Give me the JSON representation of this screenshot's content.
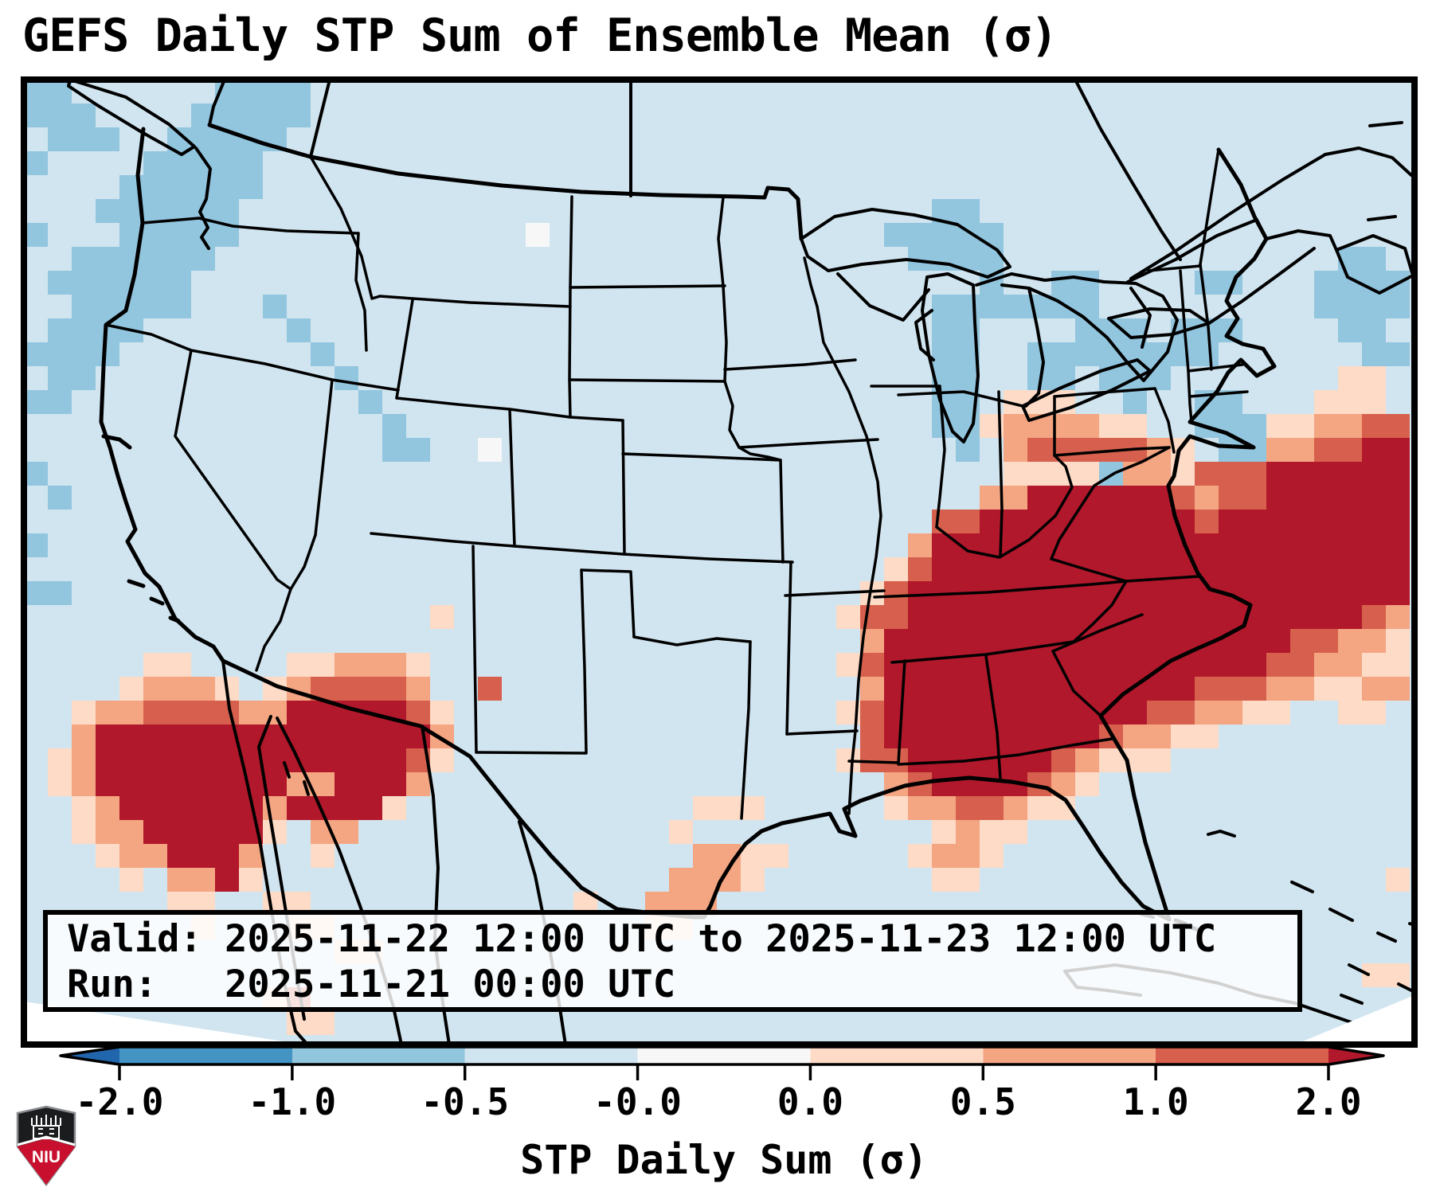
{
  "title": "GEFS Daily STP Sum of Ensemble Mean (σ)",
  "info_box": {
    "line1": "Valid: 2025-11-22 12:00 UTC to 2025-11-23 12:00 UTC",
    "line2": "Run:   2025-11-21 00:00 UTC"
  },
  "colorbar": {
    "label": "STP Daily Sum (σ)",
    "ticks": [
      "-2.0",
      "-1.0",
      "-0.5",
      "-0.0",
      "0.0",
      "0.5",
      "1.0",
      "2.0"
    ],
    "segment_colors": [
      "#4393c3",
      "#92c5de",
      "#d1e5f0",
      "#f7f7f7",
      "#fddbc7",
      "#f4a582",
      "#d6604d"
    ],
    "extend_left": "#2166ac",
    "extend_right": "#b2182b"
  },
  "map": {
    "background": "#d1e5f0",
    "cell_size": 30,
    "palette": {
      "d": "#b2182b",
      "r": "#d6604d",
      "s": "#f4a582",
      "p": "#fddbc7",
      "w": "#f7f7f7",
      "b": "#92c5de"
    },
    "runs": [
      [
        0,
        0,
        1,
        "b"
      ],
      [
        0,
        8,
        11,
        "b"
      ],
      [
        1,
        0,
        2,
        "b"
      ],
      [
        1,
        7,
        11,
        "b"
      ],
      [
        2,
        1,
        3,
        "b"
      ],
      [
        2,
        6,
        10,
        "b"
      ],
      [
        3,
        0,
        0,
        "b"
      ],
      [
        3,
        5,
        9,
        "b"
      ],
      [
        4,
        4,
        9,
        "b"
      ],
      [
        5,
        3,
        8,
        "b"
      ],
      [
        6,
        0,
        0,
        "b"
      ],
      [
        6,
        4,
        8,
        "b"
      ],
      [
        7,
        2,
        7,
        "b"
      ],
      [
        8,
        1,
        6,
        "b"
      ],
      [
        9,
        2,
        6,
        "b"
      ],
      [
        9,
        10,
        10,
        "b"
      ],
      [
        10,
        1,
        4,
        "b"
      ],
      [
        10,
        11,
        11,
        "b"
      ],
      [
        11,
        0,
        3,
        "b"
      ],
      [
        11,
        12,
        12,
        "b"
      ],
      [
        12,
        1,
        2,
        "b"
      ],
      [
        12,
        13,
        13,
        "b"
      ],
      [
        13,
        0,
        1,
        "b"
      ],
      [
        13,
        14,
        14,
        "b"
      ],
      [
        14,
        15,
        15,
        "b"
      ],
      [
        15,
        15,
        16,
        "b"
      ],
      [
        16,
        0,
        0,
        "b"
      ],
      [
        17,
        1,
        1,
        "b"
      ],
      [
        19,
        0,
        0,
        "b"
      ],
      [
        21,
        0,
        1,
        "b"
      ],
      [
        5,
        38,
        39,
        "b"
      ],
      [
        6,
        36,
        40,
        "b"
      ],
      [
        7,
        37,
        40,
        "b"
      ],
      [
        8,
        40,
        40,
        "b"
      ],
      [
        8,
        43,
        44,
        "b"
      ],
      [
        9,
        38,
        40,
        "b"
      ],
      [
        9,
        41,
        44,
        "b"
      ],
      [
        10,
        38,
        39,
        "b"
      ],
      [
        10,
        44,
        46,
        "b"
      ],
      [
        11,
        38,
        39,
        "b"
      ],
      [
        11,
        42,
        44,
        "b"
      ],
      [
        11,
        45,
        47,
        "b"
      ],
      [
        12,
        38,
        39,
        "b"
      ],
      [
        12,
        42,
        43,
        "b"
      ],
      [
        12,
        46,
        47,
        "b"
      ],
      [
        13,
        38,
        39,
        "b"
      ],
      [
        13,
        46,
        46,
        "b"
      ],
      [
        14,
        38,
        39,
        "b"
      ],
      [
        15,
        39,
        39,
        "b"
      ],
      [
        8,
        49,
        50,
        "b"
      ],
      [
        10,
        48,
        50,
        "b"
      ],
      [
        11,
        48,
        49,
        "b"
      ],
      [
        12,
        45,
        46,
        "b"
      ],
      [
        13,
        49,
        50,
        "b"
      ],
      [
        14,
        49,
        51,
        "b"
      ],
      [
        15,
        50,
        51,
        "b"
      ],
      [
        7,
        55,
        56,
        "b"
      ],
      [
        8,
        54,
        57,
        "b"
      ],
      [
        9,
        54,
        57,
        "b"
      ],
      [
        10,
        55,
        56,
        "b"
      ],
      [
        11,
        56,
        57,
        "b"
      ],
      [
        16,
        45,
        45,
        "b"
      ],
      [
        6,
        21,
        21,
        "w"
      ],
      [
        15,
        19,
        19,
        "w"
      ],
      [
        12,
        55,
        56,
        "p"
      ],
      [
        13,
        41,
        43,
        "p"
      ],
      [
        13,
        54,
        56,
        "p"
      ],
      [
        14,
        40,
        40,
        "p"
      ],
      [
        14,
        41,
        44,
        "s"
      ],
      [
        14,
        45,
        46,
        "p"
      ],
      [
        14,
        52,
        53,
        "p"
      ],
      [
        14,
        54,
        55,
        "s"
      ],
      [
        14,
        56,
        57,
        "r"
      ],
      [
        15,
        41,
        41,
        "s"
      ],
      [
        15,
        42,
        46,
        "r"
      ],
      [
        15,
        47,
        47,
        "s"
      ],
      [
        15,
        48,
        48,
        "p"
      ],
      [
        15,
        52,
        53,
        "s"
      ],
      [
        15,
        54,
        55,
        "r"
      ],
      [
        15,
        56,
        57,
        "d"
      ],
      [
        16,
        41,
        44,
        "p"
      ],
      [
        16,
        46,
        47,
        "s"
      ],
      [
        16,
        48,
        48,
        "p"
      ],
      [
        16,
        49,
        51,
        "r"
      ],
      [
        16,
        52,
        57,
        "d"
      ],
      [
        17,
        40,
        41,
        "s"
      ],
      [
        17,
        42,
        47,
        "d"
      ],
      [
        17,
        48,
        48,
        "r"
      ],
      [
        17,
        49,
        49,
        "s"
      ],
      [
        17,
        50,
        51,
        "r"
      ],
      [
        17,
        52,
        57,
        "d"
      ],
      [
        18,
        38,
        39,
        "r"
      ],
      [
        18,
        40,
        48,
        "d"
      ],
      [
        18,
        49,
        49,
        "r"
      ],
      [
        18,
        50,
        57,
        "d"
      ],
      [
        19,
        37,
        37,
        "s"
      ],
      [
        19,
        38,
        57,
        "d"
      ],
      [
        20,
        36,
        36,
        "p"
      ],
      [
        20,
        37,
        37,
        "r"
      ],
      [
        20,
        38,
        57,
        "d"
      ],
      [
        21,
        35,
        35,
        "p"
      ],
      [
        21,
        36,
        36,
        "r"
      ],
      [
        21,
        37,
        57,
        "d"
      ],
      [
        22,
        34,
        34,
        "p"
      ],
      [
        22,
        35,
        36,
        "r"
      ],
      [
        22,
        37,
        55,
        "d"
      ],
      [
        22,
        56,
        56,
        "r"
      ],
      [
        22,
        57,
        57,
        "s"
      ],
      [
        23,
        35,
        35,
        "s"
      ],
      [
        23,
        36,
        52,
        "d"
      ],
      [
        23,
        53,
        54,
        "r"
      ],
      [
        23,
        55,
        56,
        "s"
      ],
      [
        23,
        57,
        57,
        "p"
      ],
      [
        24,
        34,
        34,
        "p"
      ],
      [
        24,
        35,
        35,
        "r"
      ],
      [
        24,
        36,
        51,
        "d"
      ],
      [
        24,
        52,
        53,
        "r"
      ],
      [
        24,
        54,
        55,
        "s"
      ],
      [
        24,
        56,
        57,
        "p"
      ],
      [
        25,
        35,
        35,
        "s"
      ],
      [
        25,
        36,
        48,
        "d"
      ],
      [
        25,
        49,
        51,
        "r"
      ],
      [
        25,
        52,
        53,
        "s"
      ],
      [
        25,
        54,
        55,
        "p"
      ],
      [
        25,
        56,
        57,
        "s"
      ],
      [
        26,
        34,
        34,
        "p"
      ],
      [
        26,
        35,
        35,
        "r"
      ],
      [
        26,
        36,
        46,
        "d"
      ],
      [
        26,
        47,
        48,
        "r"
      ],
      [
        26,
        49,
        50,
        "s"
      ],
      [
        26,
        51,
        52,
        "p"
      ],
      [
        26,
        55,
        56,
        "p"
      ],
      [
        27,
        35,
        35,
        "r"
      ],
      [
        27,
        36,
        44,
        "d"
      ],
      [
        27,
        45,
        45,
        "r"
      ],
      [
        27,
        46,
        47,
        "s"
      ],
      [
        27,
        48,
        49,
        "p"
      ],
      [
        28,
        34,
        34,
        "p"
      ],
      [
        28,
        35,
        36,
        "r"
      ],
      [
        28,
        37,
        42,
        "d"
      ],
      [
        28,
        43,
        43,
        "r"
      ],
      [
        28,
        44,
        44,
        "s"
      ],
      [
        28,
        45,
        47,
        "p"
      ],
      [
        29,
        36,
        36,
        "s"
      ],
      [
        29,
        37,
        37,
        "r"
      ],
      [
        29,
        38,
        41,
        "d"
      ],
      [
        29,
        42,
        42,
        "r"
      ],
      [
        29,
        43,
        43,
        "s"
      ],
      [
        29,
        44,
        44,
        "p"
      ],
      [
        30,
        36,
        36,
        "p"
      ],
      [
        30,
        37,
        38,
        "s"
      ],
      [
        30,
        39,
        40,
        "r"
      ],
      [
        30,
        41,
        41,
        "s"
      ],
      [
        30,
        42,
        43,
        "p"
      ],
      [
        31,
        38,
        38,
        "p"
      ],
      [
        31,
        39,
        39,
        "s"
      ],
      [
        31,
        40,
        41,
        "p"
      ],
      [
        32,
        37,
        37,
        "p"
      ],
      [
        32,
        38,
        39,
        "s"
      ],
      [
        32,
        40,
        40,
        "p"
      ],
      [
        33,
        38,
        39,
        "p"
      ],
      [
        33,
        57,
        57,
        "p"
      ],
      [
        37,
        56,
        57,
        "p"
      ],
      [
        24,
        5,
        6,
        "p"
      ],
      [
        24,
        11,
        12,
        "p"
      ],
      [
        24,
        13,
        15,
        "s"
      ],
      [
        24,
        16,
        16,
        "p"
      ],
      [
        25,
        4,
        4,
        "p"
      ],
      [
        25,
        5,
        7,
        "s"
      ],
      [
        25,
        8,
        8,
        "p"
      ],
      [
        25,
        10,
        10,
        "p"
      ],
      [
        25,
        11,
        11,
        "s"
      ],
      [
        25,
        12,
        15,
        "r"
      ],
      [
        25,
        16,
        16,
        "s"
      ],
      [
        25,
        19,
        19,
        "r"
      ],
      [
        26,
        2,
        2,
        "p"
      ],
      [
        26,
        3,
        4,
        "s"
      ],
      [
        26,
        5,
        8,
        "r"
      ],
      [
        26,
        9,
        10,
        "s"
      ],
      [
        26,
        11,
        15,
        "d"
      ],
      [
        26,
        16,
        16,
        "r"
      ],
      [
        26,
        17,
        17,
        "p"
      ],
      [
        27,
        2,
        2,
        "s"
      ],
      [
        27,
        3,
        16,
        "d"
      ],
      [
        27,
        17,
        17,
        "s"
      ],
      [
        28,
        1,
        1,
        "p"
      ],
      [
        28,
        2,
        2,
        "s"
      ],
      [
        28,
        3,
        15,
        "d"
      ],
      [
        28,
        16,
        16,
        "r"
      ],
      [
        28,
        17,
        17,
        "p"
      ],
      [
        29,
        1,
        1,
        "p"
      ],
      [
        29,
        2,
        2,
        "s"
      ],
      [
        29,
        3,
        10,
        "d"
      ],
      [
        29,
        11,
        12,
        "s"
      ],
      [
        29,
        13,
        15,
        "d"
      ],
      [
        29,
        16,
        16,
        "s"
      ],
      [
        30,
        2,
        2,
        "p"
      ],
      [
        30,
        3,
        3,
        "s"
      ],
      [
        30,
        4,
        9,
        "d"
      ],
      [
        30,
        10,
        10,
        "s"
      ],
      [
        30,
        11,
        14,
        "d"
      ],
      [
        30,
        15,
        15,
        "p"
      ],
      [
        31,
        2,
        2,
        "p"
      ],
      [
        31,
        3,
        4,
        "s"
      ],
      [
        31,
        5,
        9,
        "d"
      ],
      [
        31,
        10,
        10,
        "p"
      ],
      [
        31,
        12,
        13,
        "s"
      ],
      [
        32,
        3,
        3,
        "p"
      ],
      [
        32,
        4,
        5,
        "s"
      ],
      [
        32,
        6,
        8,
        "d"
      ],
      [
        32,
        9,
        9,
        "s"
      ],
      [
        32,
        12,
        12,
        "p"
      ],
      [
        33,
        4,
        4,
        "p"
      ],
      [
        33,
        6,
        7,
        "s"
      ],
      [
        33,
        8,
        8,
        "d"
      ],
      [
        33,
        9,
        9,
        "p"
      ],
      [
        34,
        6,
        7,
        "p"
      ],
      [
        34,
        10,
        11,
        "p"
      ],
      [
        35,
        7,
        7,
        "p"
      ],
      [
        35,
        11,
        12,
        "p"
      ],
      [
        36,
        13,
        14,
        "p"
      ],
      [
        38,
        10,
        10,
        "p"
      ],
      [
        38,
        11,
        11,
        "r"
      ],
      [
        39,
        11,
        12,
        "p"
      ],
      [
        22,
        17,
        17,
        "p"
      ],
      [
        30,
        28,
        30,
        "p"
      ],
      [
        31,
        27,
        27,
        "p"
      ],
      [
        32,
        28,
        29,
        "s"
      ],
      [
        32,
        30,
        31,
        "p"
      ],
      [
        33,
        27,
        29,
        "s"
      ],
      [
        33,
        30,
        30,
        "p"
      ],
      [
        34,
        23,
        23,
        "p"
      ],
      [
        34,
        26,
        28,
        "s"
      ],
      [
        35,
        26,
        27,
        "p"
      ]
    ]
  },
  "logo": {
    "text": "NIU",
    "shield_dark": "#1b1c1e",
    "shield_red": "#c8102e"
  }
}
